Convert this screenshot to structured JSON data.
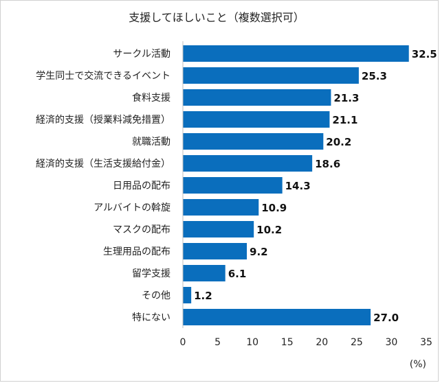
{
  "chart_data": {
    "type": "bar",
    "orientation": "horizontal",
    "title": "支援してほしいこと（複数選択可）",
    "unit_label": "(%)",
    "categories": [
      "サークル活動",
      "学生同士で交流できるイベント",
      "食料支援",
      "経済的支援（授業料減免措置）",
      "就職活動",
      "経済的支援（生活支援給付金）",
      "日用品の配布",
      "アルバイトの斡旋",
      "マスクの配布",
      "生理用品の配布",
      "留学支援",
      "その他",
      "特にない"
    ],
    "values": [
      32.5,
      25.3,
      21.3,
      21.1,
      20.2,
      18.6,
      14.3,
      10.9,
      10.2,
      9.2,
      6.1,
      1.2,
      27.0
    ],
    "value_labels": [
      "32.5",
      "25.3",
      "21.3",
      "21.1",
      "20.2",
      "18.6",
      "14.3",
      "10.9",
      "10.2",
      "9.2",
      "6.1",
      "1.2",
      "27.0"
    ],
    "xlim": [
      0,
      35
    ],
    "xticks": [
      0,
      5,
      10,
      15,
      20,
      25,
      30,
      35
    ],
    "bar_color": "#0a6ebd",
    "grid": false,
    "legend": "none"
  }
}
